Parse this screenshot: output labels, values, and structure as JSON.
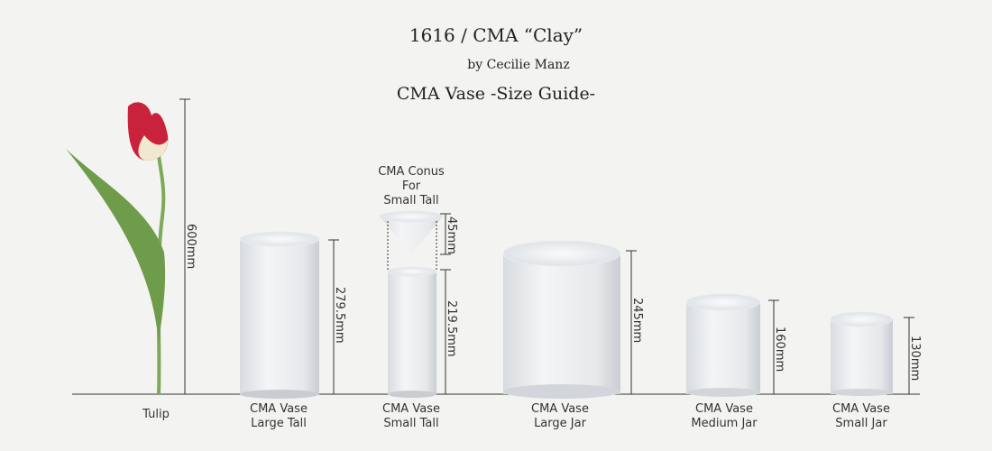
{
  "header": {
    "title": "1616 / CMA “Clay”",
    "byline": "by Cecilie Manz",
    "heading": "CMA Vase -Size Guide-"
  },
  "items": [
    {
      "name": [
        "Tulip"
      ],
      "size": "600mm"
    },
    {
      "name": [
        "CMA Vase",
        "Large Tall"
      ],
      "size": "279.5mm"
    },
    {
      "name": [
        "CMA Vase",
        "Small Tall"
      ],
      "size": "219.5mm"
    },
    {
      "name": [
        "CMA Conus",
        "For",
        "Small Tall"
      ],
      "size": "45mm"
    },
    {
      "name": [
        "CMA Vase",
        "Large Jar"
      ],
      "size": "245mm"
    },
    {
      "name": [
        "CMA Vase",
        "Medium Jar"
      ],
      "size": "160mm"
    },
    {
      "name": [
        "CMA Vase",
        "Small Jar"
      ],
      "size": "130mm"
    }
  ]
}
